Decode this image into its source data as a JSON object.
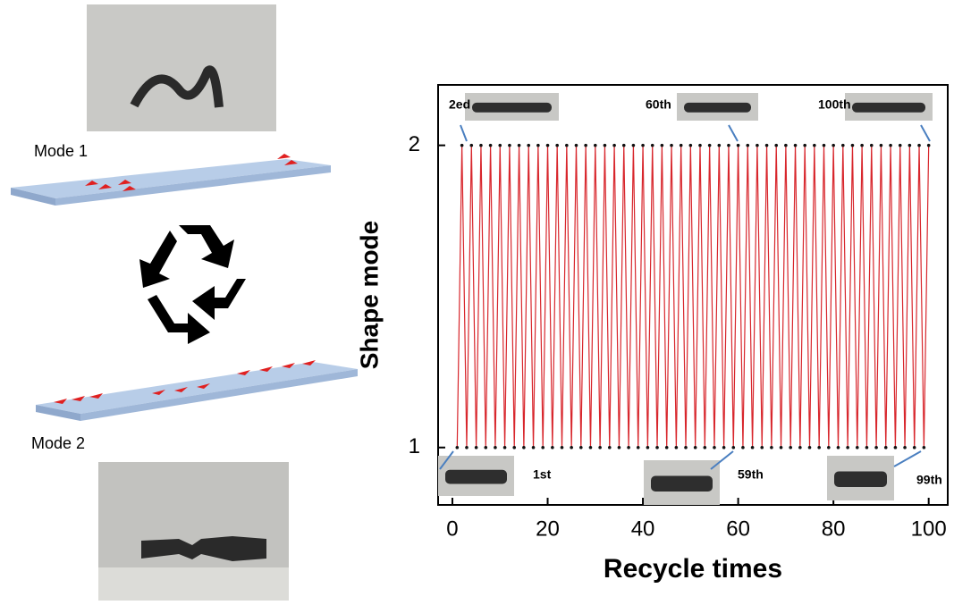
{
  "figure": {
    "mode_labels": [
      "Mode 1",
      "Mode 2"
    ]
  },
  "chart_data": {
    "type": "line",
    "xlabel": "Recycle times",
    "ylabel": "Shape mode",
    "x": [
      1,
      2,
      3,
      4,
      5,
      6,
      7,
      8,
      9,
      10,
      11,
      12,
      13,
      14,
      15,
      16,
      17,
      18,
      19,
      20,
      21,
      22,
      23,
      24,
      25,
      26,
      27,
      28,
      29,
      30,
      31,
      32,
      33,
      34,
      35,
      36,
      37,
      38,
      39,
      40,
      41,
      42,
      43,
      44,
      45,
      46,
      47,
      48,
      49,
      50,
      51,
      52,
      53,
      54,
      55,
      56,
      57,
      58,
      59,
      60,
      61,
      62,
      63,
      64,
      65,
      66,
      67,
      68,
      69,
      70,
      71,
      72,
      73,
      74,
      75,
      76,
      77,
      78,
      79,
      80,
      81,
      82,
      83,
      84,
      85,
      86,
      87,
      88,
      89,
      90,
      91,
      92,
      93,
      94,
      95,
      96,
      97,
      98,
      99,
      100
    ],
    "values": [
      1,
      2,
      1,
      2,
      1,
      2,
      1,
      2,
      1,
      2,
      1,
      2,
      1,
      2,
      1,
      2,
      1,
      2,
      1,
      2,
      1,
      2,
      1,
      2,
      1,
      2,
      1,
      2,
      1,
      2,
      1,
      2,
      1,
      2,
      1,
      2,
      1,
      2,
      1,
      2,
      1,
      2,
      1,
      2,
      1,
      2,
      1,
      2,
      1,
      2,
      1,
      2,
      1,
      2,
      1,
      2,
      1,
      2,
      1,
      2,
      1,
      2,
      1,
      2,
      1,
      2,
      1,
      2,
      1,
      2,
      1,
      2,
      1,
      2,
      1,
      2,
      1,
      2,
      1,
      2,
      1,
      2,
      1,
      2,
      1,
      2,
      1,
      2,
      1,
      2,
      1,
      2,
      1,
      2,
      1,
      2,
      1,
      2,
      1,
      2
    ],
    "color": "#d8262c",
    "marker_color": "#111111",
    "xlim": [
      -3,
      104
    ],
    "ylim": [
      0.81,
      2.2
    ],
    "xticks": [
      0,
      20,
      40,
      60,
      80,
      100
    ],
    "yticks": [
      1,
      2
    ],
    "annotations": [
      "2ed",
      "60th",
      "100th",
      "1st",
      "59th",
      "99th"
    ]
  }
}
